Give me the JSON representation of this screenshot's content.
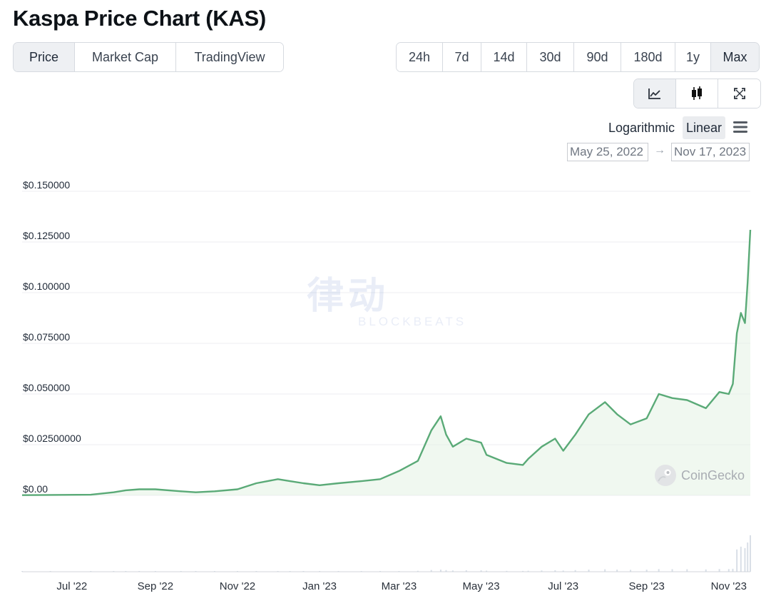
{
  "page": {
    "title": "Kaspa Price Chart (KAS)"
  },
  "view_tabs": [
    {
      "label": "Price",
      "active": true
    },
    {
      "label": "Market Cap",
      "active": false
    },
    {
      "label": "TradingView",
      "active": false
    }
  ],
  "range_tabs": [
    {
      "label": "24h",
      "active": false
    },
    {
      "label": "7d",
      "active": false
    },
    {
      "label": "14d",
      "active": false
    },
    {
      "label": "30d",
      "active": false
    },
    {
      "label": "90d",
      "active": false
    },
    {
      "label": "180d",
      "active": false
    },
    {
      "label": "1y",
      "active": false
    },
    {
      "label": "Max",
      "active": true
    }
  ],
  "chart_type_tabs": [
    {
      "icon": "line-chart-icon",
      "active": true
    },
    {
      "icon": "candlestick-icon",
      "active": false
    },
    {
      "icon": "expand-icon",
      "active": false
    }
  ],
  "scale": {
    "log_label": "Logarithmic",
    "linear_label": "Linear",
    "selected": "Linear"
  },
  "date_range": {
    "from": "May 25, 2022",
    "arrow": "→",
    "to": "Nov 17, 2023"
  },
  "watermark": {
    "logo": "律动",
    "text": "BLOCKBEATS"
  },
  "brand": {
    "label": "CoinGecko"
  },
  "colors": {
    "line": "#5aaa77",
    "area": "#e3f2e3",
    "grid": "#eceef1",
    "active_button": "#eef0f3"
  },
  "chart_data": {
    "type": "area",
    "title": "Kaspa Price Chart (KAS)",
    "xlabel": "",
    "ylabel": "",
    "ylim": [
      0,
      0.15
    ],
    "y_ticks": [
      "$0.00",
      "$0.02500000",
      "$0.050000",
      "$0.075000",
      "$0.100000",
      "$0.125000",
      "$0.150000"
    ],
    "y_tick_values": [
      0,
      0.025,
      0.05,
      0.075,
      0.1,
      0.125,
      0.15
    ],
    "x_range": [
      "2022-05-25",
      "2023-11-17"
    ],
    "x_ticks": [
      "Jul '22",
      "Sep '22",
      "Nov '22",
      "Jan '23",
      "Mar '23",
      "May '23",
      "Jul '23",
      "Sep '23",
      "Nov '23"
    ],
    "x_tick_dates": [
      "2022-07-01",
      "2022-09-01",
      "2022-11-01",
      "2023-01-01",
      "2023-03-01",
      "2023-05-01",
      "2023-07-01",
      "2023-09-01",
      "2023-11-01"
    ],
    "grid": true,
    "series": [
      {
        "x": [
          "2022-05-25",
          "2022-06-15",
          "2022-07-15",
          "2022-08-01",
          "2022-08-10",
          "2022-08-20",
          "2022-09-01",
          "2022-09-20",
          "2022-10-01",
          "2022-10-15",
          "2022-11-01",
          "2022-11-15",
          "2022-12-01",
          "2022-12-10",
          "2022-12-20",
          "2023-01-01",
          "2023-01-15",
          "2023-02-01",
          "2023-02-15",
          "2023-03-01",
          "2023-03-15",
          "2023-03-25",
          "2023-04-01",
          "2023-04-05",
          "2023-04-10",
          "2023-04-20",
          "2023-05-01",
          "2023-05-05",
          "2023-05-20",
          "2023-06-01",
          "2023-06-05",
          "2023-06-15",
          "2023-06-25",
          "2023-07-01",
          "2023-07-10",
          "2023-07-20",
          "2023-08-01",
          "2023-08-10",
          "2023-08-20",
          "2023-09-01",
          "2023-09-10",
          "2023-09-20",
          "2023-10-01",
          "2023-10-15",
          "2023-10-25",
          "2023-11-01",
          "2023-11-04",
          "2023-11-07",
          "2023-11-10",
          "2023-11-13",
          "2023-11-15",
          "2023-11-17"
        ],
        "y": [
          0.0001,
          0.0002,
          0.0003,
          0.0015,
          0.0025,
          0.003,
          0.003,
          0.002,
          0.0015,
          0.002,
          0.003,
          0.006,
          0.008,
          0.007,
          0.006,
          0.005,
          0.006,
          0.007,
          0.008,
          0.012,
          0.017,
          0.032,
          0.039,
          0.03,
          0.024,
          0.028,
          0.026,
          0.02,
          0.016,
          0.015,
          0.018,
          0.024,
          0.028,
          0.022,
          0.03,
          0.04,
          0.046,
          0.04,
          0.035,
          0.038,
          0.05,
          0.048,
          0.047,
          0.043,
          0.051,
          0.05,
          0.055,
          0.08,
          0.09,
          0.085,
          0.105,
          0.131
        ]
      }
    ],
    "volume_peak_month": "Nov '23"
  }
}
